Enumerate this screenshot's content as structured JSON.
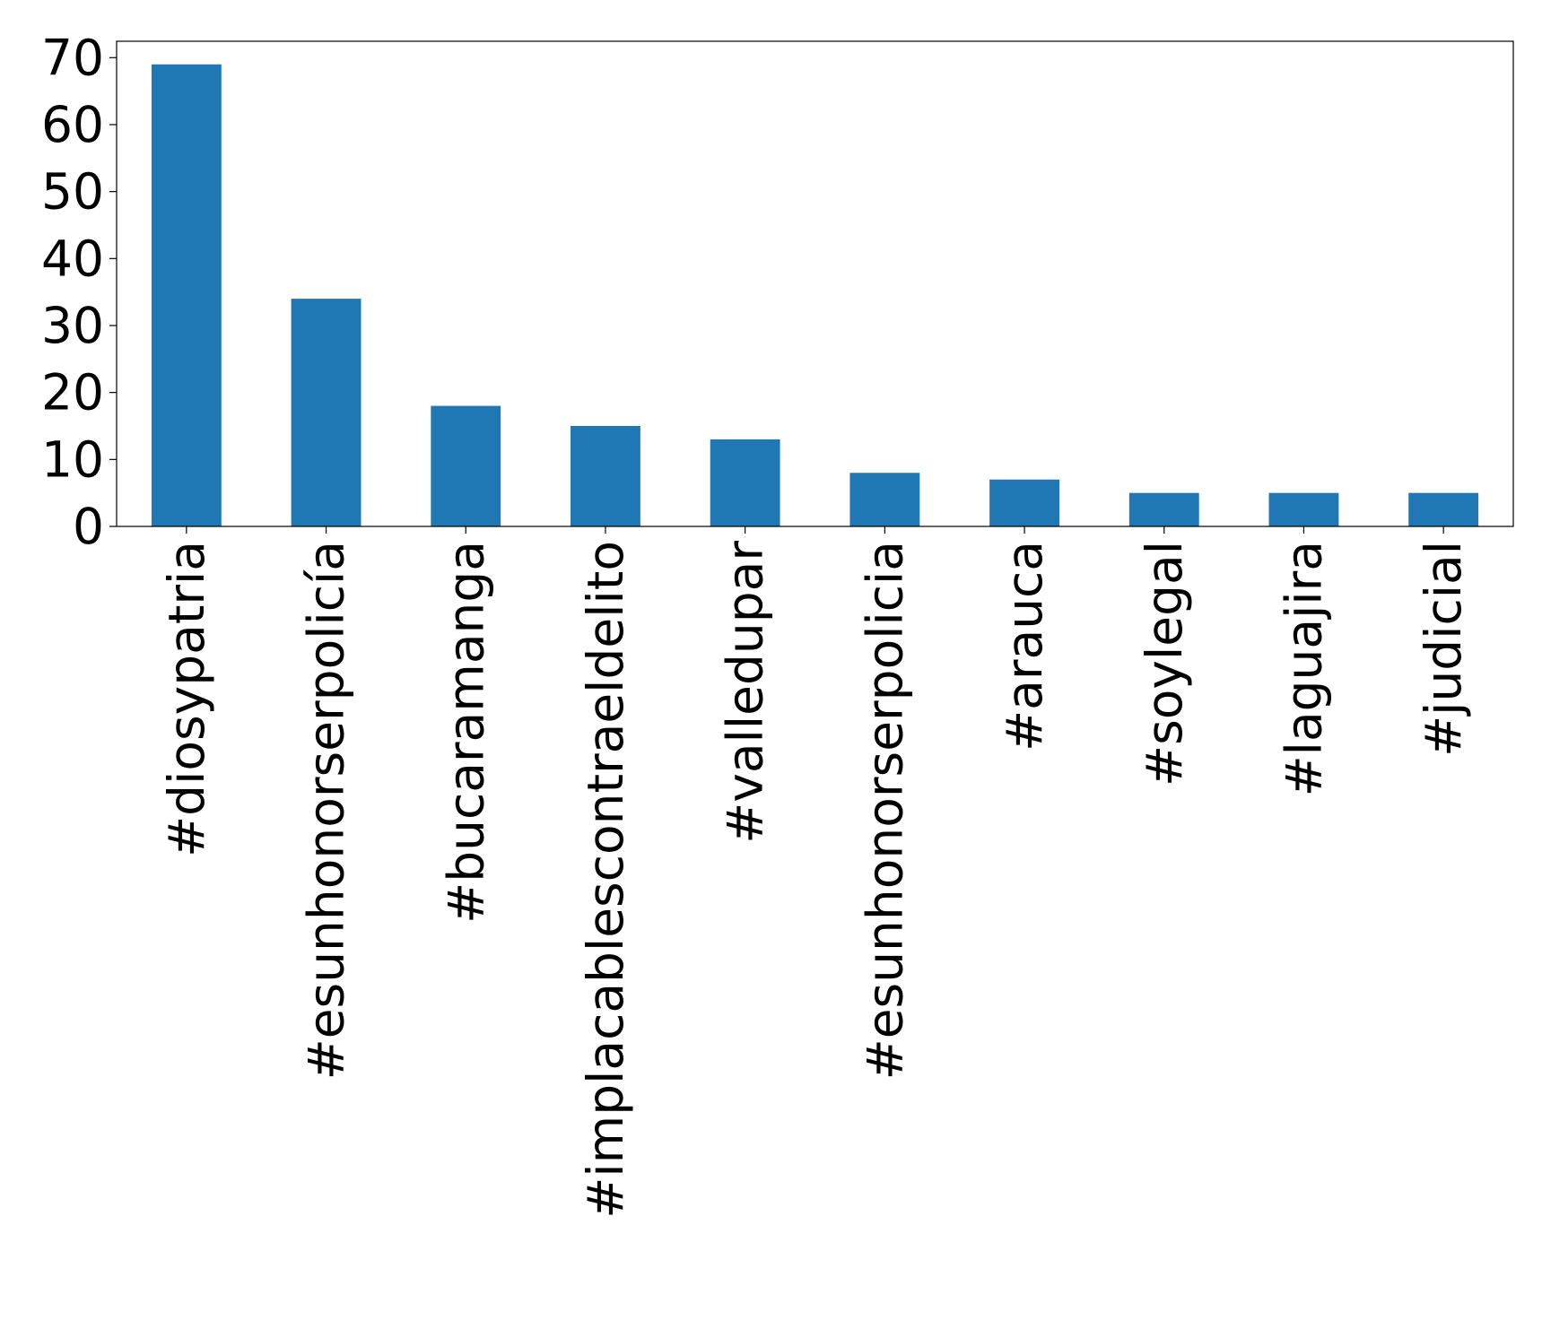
{
  "chart_data": {
    "type": "bar",
    "categories": [
      "#diosypatria",
      "#esunhonorserpolicía",
      "#bucaramanga",
      "#implacablescontraeldelito",
      "#valledupar",
      "#esunhonorserpolicia",
      "#arauca",
      "#soylegal",
      "#laguajira",
      "#judicial"
    ],
    "values": [
      69,
      34,
      18,
      15,
      13,
      8,
      7,
      5,
      5,
      5
    ],
    "color": "#1f77b4",
    "ylim": [
      0,
      72.45
    ],
    "yticks": [
      0,
      10,
      20,
      30,
      40,
      50,
      60,
      70
    ],
    "grid": false
  }
}
